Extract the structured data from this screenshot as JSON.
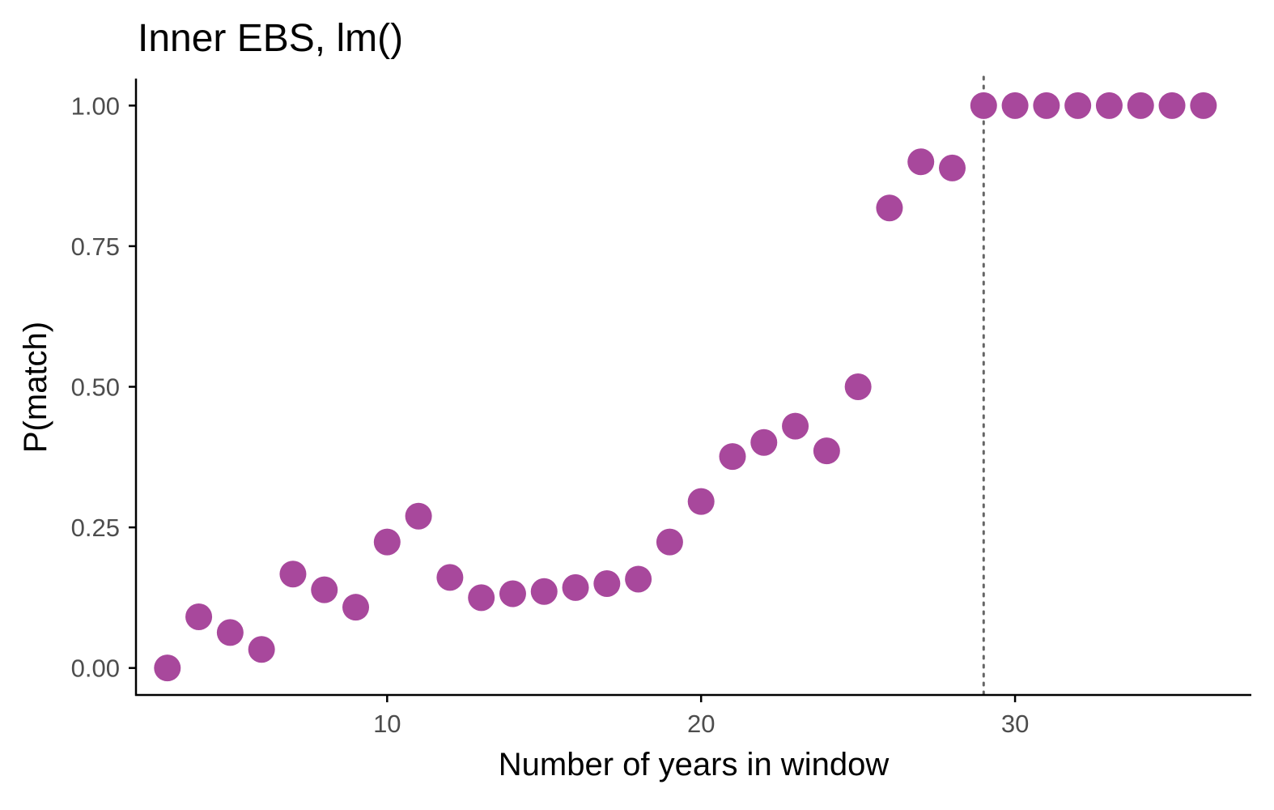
{
  "chart_data": {
    "type": "scatter",
    "title": "Inner EBS, lm()",
    "xlabel": "Number of years in window",
    "ylabel": "P(match)",
    "xlim": [
      2.0,
      37.5
    ],
    "ylim": [
      -0.048,
      1.048
    ],
    "x_ticks": [
      10,
      20,
      30
    ],
    "x_tick_labels": [
      "10",
      "20",
      "30"
    ],
    "y_ticks": [
      0,
      0.25,
      0.5,
      0.75,
      1
    ],
    "y_tick_labels": [
      "0.00",
      "0.25",
      "0.50",
      "0.75",
      "1.00"
    ],
    "grid": false,
    "legend": "none",
    "reference_line": {
      "orientation": "vertical",
      "x": 29,
      "style": "dotted",
      "color": "#666666"
    },
    "point_color": "#A8489C",
    "axis_color": "#000000",
    "tick_label_color": "#4D4D4D",
    "series": [
      {
        "x": [
          3,
          4,
          5,
          6,
          7,
          8,
          9,
          10,
          11,
          12,
          13,
          14,
          15,
          16,
          17,
          18,
          19,
          20,
          21,
          22,
          23,
          24,
          25,
          26,
          27,
          28,
          29,
          30,
          31,
          32,
          33,
          34,
          35,
          36
        ],
        "y": [
          0.0,
          0.091,
          0.063,
          0.033,
          0.167,
          0.139,
          0.108,
          0.224,
          0.27,
          0.161,
          0.125,
          0.132,
          0.136,
          0.143,
          0.15,
          0.158,
          0.224,
          0.296,
          0.376,
          0.401,
          0.43,
          0.386,
          0.5,
          0.818,
          0.9,
          0.889,
          1.0,
          1.0,
          1.0,
          1.0,
          1.0,
          1.0,
          1.0,
          1.0
        ]
      }
    ]
  }
}
